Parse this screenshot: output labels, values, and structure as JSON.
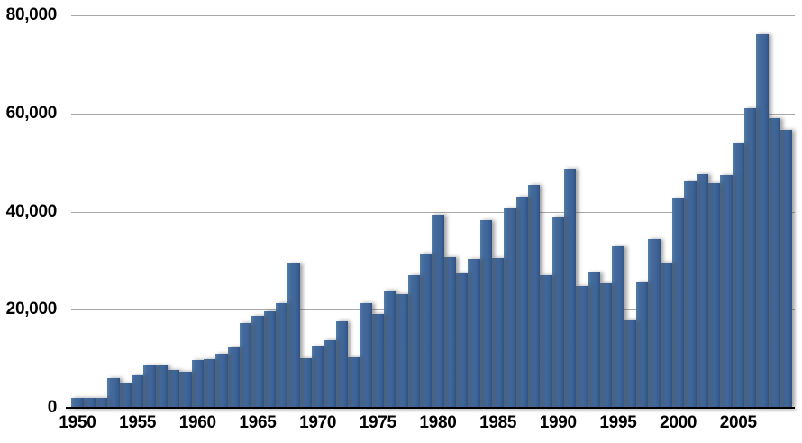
{
  "chart_data": {
    "type": "bar",
    "title": "",
    "xlabel": "",
    "ylabel": "",
    "categories": [
      1950,
      1951,
      1952,
      1953,
      1954,
      1955,
      1956,
      1957,
      1958,
      1959,
      1960,
      1961,
      1962,
      1963,
      1964,
      1965,
      1966,
      1967,
      1968,
      1969,
      1970,
      1971,
      1972,
      1973,
      1974,
      1975,
      1976,
      1977,
      1978,
      1979,
      1980,
      1981,
      1982,
      1983,
      1984,
      1985,
      1986,
      1987,
      1988,
      1989,
      1990,
      1991,
      1992,
      1993,
      1994,
      1995,
      1996,
      1997,
      1998,
      1999,
      2000,
      2001,
      2002,
      2003,
      2004,
      2005,
      2006,
      2007,
      2008,
      2009
    ],
    "values": [
      2100,
      2000,
      2000,
      6000,
      5000,
      6700,
      8700,
      8600,
      7800,
      7400,
      9700,
      9900,
      11100,
      12300,
      17300,
      18800,
      19700,
      21300,
      29400,
      10100,
      12600,
      13800,
      17700,
      10300,
      21300,
      19100,
      24000,
      23200,
      27000,
      31400,
      39400,
      30700,
      27400,
      30400,
      38300,
      30600,
      40700,
      43100,
      45400,
      27100,
      38900,
      48800,
      24900,
      27500,
      25300,
      33000,
      17900,
      25500,
      34400,
      29600,
      42700,
      46200,
      47600,
      45800,
      47400,
      53800,
      61100,
      76200,
      59000,
      56600
    ],
    "ylim": [
      0,
      80000
    ],
    "ytick_values": [
      0,
      20000,
      40000,
      60000,
      80000
    ],
    "ytick_labels": [
      "0",
      "20,000",
      "40,000",
      "60,000",
      "80,000"
    ],
    "xtick_years": [
      1950,
      1955,
      1960,
      1965,
      1970,
      1975,
      1980,
      1985,
      1990,
      1995,
      2000,
      2005
    ],
    "xtick_labels": [
      "1950",
      "1955",
      "1960",
      "1965",
      "1970",
      "1975",
      "1980",
      "1985",
      "1990",
      "1995",
      "2000",
      "2005"
    ],
    "grid": "horizontal",
    "legend": "none",
    "colors": {
      "bar_main": "#40669a",
      "bar_highlight": "#4d77a6",
      "bar_dark_edge": "#2e5184",
      "gridline": "#a8a8a8",
      "axis_line": "#000000",
      "label_text": "#000000",
      "background": "#ffffff"
    }
  }
}
